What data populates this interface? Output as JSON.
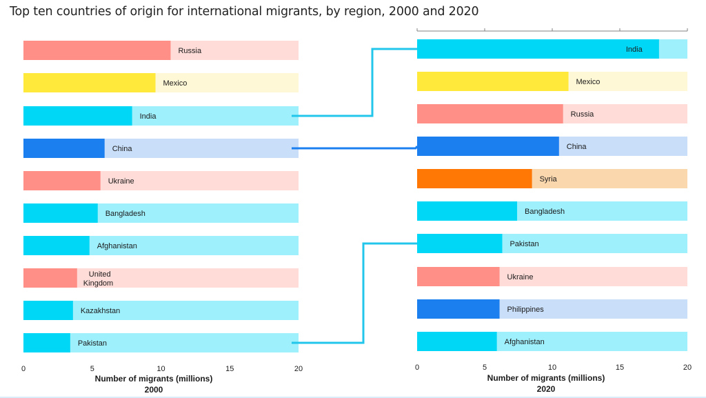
{
  "title": "Top ten countries of origin for international migrants, by region, 2000 and 2020",
  "colors": {
    "Asia": "#00d6f5",
    "Europe": "#ff8f87",
    "Latin America and the Caribbean": "#ffe93a",
    "Asia (China, Philippines)": "#1b7ff0",
    "Middle East": "#ff7806"
  },
  "chart_data": [
    {
      "type": "bar",
      "subtitle": "2000",
      "xlabel": "Number of migrants (millions)",
      "xlim": [
        0,
        20
      ],
      "xticks": [
        "0",
        "5",
        "10",
        "15",
        "20"
      ],
      "grid": false,
      "categories": [
        "Russia",
        "Mexico",
        "India",
        "China",
        "Ukraine",
        "Bangladesh",
        "Afghanistan",
        "United Kingdom",
        "Kazakhstan",
        "Pakistan"
      ],
      "values": [
        10.7,
        9.6,
        7.9,
        5.9,
        5.6,
        5.4,
        4.8,
        3.9,
        3.6,
        3.4
      ],
      "bar_colors": [
        "#ff8f87",
        "#ffe93a",
        "#00d6f5",
        "#1b7ff0",
        "#ff8f87",
        "#00d6f5",
        "#00d6f5",
        "#ff8f87",
        "#00d6f5",
        "#00d6f5"
      ],
      "track_colors": [
        "#ffdcd8",
        "#fff8d6",
        "#9ff0fd",
        "#c9def8",
        "#ffdcd8",
        "#9ff0fd",
        "#9ff0fd",
        "#ffdcd8",
        "#9ff0fd",
        "#9ff0fd"
      ]
    },
    {
      "type": "bar",
      "subtitle": "2020",
      "xlabel": "Number of migrants (millions)",
      "xlim": [
        0,
        20
      ],
      "xticks": [
        "0",
        "5",
        "10",
        "15",
        "20"
      ],
      "grid": false,
      "categories": [
        "India",
        "Mexico",
        "Russia",
        "China",
        "Syria",
        "Bangladesh",
        "Pakistan",
        "Ukraine",
        "Philippines",
        "Afghanistan"
      ],
      "values": [
        17.9,
        11.2,
        10.8,
        10.5,
        8.5,
        7.4,
        6.3,
        6.1,
        6.1,
        5.9
      ],
      "bar_colors": [
        "#00d6f5",
        "#ffe93a",
        "#ff8f87",
        "#1b7ff0",
        "#ff7806",
        "#00d6f5",
        "#00d6f5",
        "#ff8f87",
        "#1b7ff0",
        "#00d6f5"
      ],
      "track_colors": [
        "#9ff0fd",
        "#fff8d6",
        "#ffdcd8",
        "#c9def8",
        "#fbd7ae",
        "#9ff0fd",
        "#9ff0fd",
        "#ffdcd8",
        "#c9def8",
        "#9ff0fd"
      ]
    }
  ],
  "connectors": [
    {
      "country": "India",
      "color": "#21c6ea"
    },
    {
      "country": "China",
      "color": "#1b7ff0"
    },
    {
      "country": "Pakistan",
      "color": "#21c6ea"
    }
  ]
}
